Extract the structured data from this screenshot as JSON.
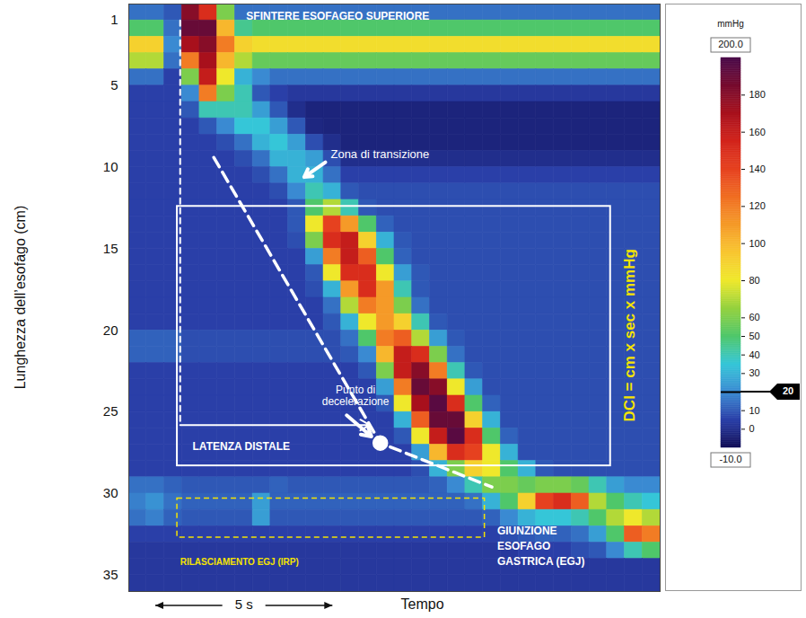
{
  "chart_data": {
    "type": "heatmap",
    "x_label": "Tempo",
    "y_label": "Lunghezza dell’esofago (cm)",
    "xlim": [
      0,
      15
    ],
    "ylim": [
      36,
      0
    ],
    "yticks": [
      1,
      5,
      10,
      15,
      20,
      25,
      30,
      35
    ],
    "tick_labels": "y",
    "x_bins": [
      0,
      0.5,
      1,
      1.5,
      2,
      2.5,
      3,
      3.5,
      4,
      4.5,
      5,
      5.5,
      6,
      6.5,
      7,
      7.5,
      8,
      8.5,
      9,
      9.5,
      10,
      10.5,
      11,
      11.5,
      12,
      12.5,
      13,
      13.5,
      14,
      14.5,
      15
    ],
    "y_bins": [
      0,
      1,
      2,
      3,
      4,
      5,
      6,
      7,
      8,
      9,
      10,
      11,
      12,
      13,
      14,
      15,
      16,
      17,
      18,
      19,
      20,
      21,
      22,
      23,
      24,
      25,
      26,
      27,
      28,
      29,
      30,
      31,
      32,
      33,
      34,
      35,
      36
    ],
    "values": [
      [
        15,
        15,
        10,
        180,
        150,
        60,
        15,
        15,
        15,
        15,
        15,
        15,
        15,
        15,
        15,
        15,
        15,
        15,
        15,
        15,
        15,
        15,
        15,
        15,
        15,
        15,
        15,
        15,
        15,
        15
      ],
      [
        50,
        50,
        15,
        190,
        190,
        100,
        45,
        50,
        50,
        50,
        50,
        50,
        50,
        50,
        50,
        50,
        50,
        50,
        50,
        50,
        50,
        50,
        50,
        50,
        50,
        50,
        50,
        50,
        50,
        50
      ],
      [
        90,
        90,
        20,
        170,
        180,
        120,
        90,
        85,
        85,
        85,
        85,
        85,
        85,
        85,
        85,
        85,
        85,
        85,
        85,
        85,
        85,
        85,
        85,
        85,
        85,
        85,
        85,
        85,
        85,
        85
      ],
      [
        70,
        70,
        15,
        120,
        170,
        100,
        70,
        55,
        55,
        55,
        55,
        55,
        55,
        55,
        55,
        55,
        55,
        55,
        55,
        55,
        55,
        55,
        55,
        55,
        55,
        55,
        55,
        55,
        55,
        55
      ],
      [
        15,
        15,
        5,
        60,
        160,
        80,
        30,
        20,
        15,
        15,
        15,
        15,
        15,
        15,
        15,
        15,
        15,
        15,
        15,
        15,
        15,
        15,
        15,
        15,
        15,
        15,
        15,
        15,
        15,
        15
      ],
      [
        5,
        5,
        5,
        20,
        120,
        60,
        40,
        10,
        5,
        3,
        3,
        3,
        3,
        3,
        3,
        3,
        3,
        3,
        3,
        3,
        3,
        3,
        3,
        3,
        3,
        3,
        3,
        3,
        3,
        3
      ],
      [
        5,
        5,
        5,
        10,
        40,
        40,
        40,
        25,
        10,
        0,
        -3,
        -3,
        -3,
        -3,
        -3,
        -3,
        -3,
        -3,
        -3,
        -3,
        -3,
        -3,
        -3,
        -3,
        -3,
        -3,
        -3,
        -3,
        -3,
        -3
      ],
      [
        5,
        5,
        5,
        5,
        10,
        20,
        35,
        35,
        25,
        10,
        -2,
        -3,
        -3,
        -3,
        -3,
        -3,
        -3,
        -3,
        -3,
        -3,
        -3,
        -3,
        -3,
        -3,
        -3,
        -3,
        -3,
        -3,
        -3,
        -3
      ],
      [
        5,
        5,
        5,
        5,
        5,
        8,
        15,
        30,
        35,
        25,
        8,
        0,
        -3,
        -3,
        -3,
        -3,
        -3,
        -3,
        -3,
        -3,
        -3,
        -3,
        -3,
        -3,
        -3,
        -3,
        -3,
        -3,
        -3,
        -3
      ],
      [
        5,
        5,
        5,
        5,
        5,
        5,
        8,
        15,
        30,
        30,
        25,
        8,
        0,
        0,
        0,
        0,
        0,
        0,
        0,
        0,
        0,
        0,
        0,
        0,
        0,
        0,
        0,
        0,
        0,
        0
      ],
      [
        5,
        5,
        5,
        5,
        5,
        5,
        5,
        8,
        15,
        30,
        30,
        15,
        5,
        5,
        5,
        5,
        5,
        5,
        5,
        5,
        5,
        5,
        5,
        5,
        5,
        5,
        5,
        5,
        5,
        5
      ],
      [
        5,
        5,
        5,
        5,
        5,
        5,
        5,
        5,
        8,
        20,
        40,
        30,
        10,
        8,
        8,
        8,
        8,
        8,
        8,
        8,
        8,
        8,
        8,
        8,
        8,
        8,
        8,
        8,
        8,
        8
      ],
      [
        5,
        5,
        5,
        5,
        5,
        5,
        5,
        5,
        5,
        10,
        50,
        70,
        40,
        10,
        8,
        8,
        8,
        8,
        8,
        8,
        8,
        8,
        8,
        8,
        8,
        8,
        8,
        8,
        8,
        8
      ],
      [
        5,
        5,
        5,
        5,
        5,
        5,
        5,
        5,
        5,
        10,
        80,
        140,
        110,
        50,
        12,
        8,
        8,
        8,
        8,
        8,
        8,
        8,
        8,
        8,
        8,
        8,
        8,
        8,
        8,
        8
      ],
      [
        5,
        5,
        5,
        5,
        5,
        5,
        5,
        5,
        5,
        8,
        60,
        150,
        160,
        90,
        30,
        10,
        8,
        8,
        8,
        8,
        8,
        8,
        8,
        8,
        8,
        8,
        8,
        8,
        8,
        8
      ],
      [
        5,
        5,
        5,
        5,
        5,
        5,
        5,
        5,
        5,
        5,
        25,
        120,
        160,
        130,
        50,
        12,
        8,
        8,
        8,
        8,
        8,
        8,
        8,
        8,
        8,
        8,
        8,
        8,
        8,
        8
      ],
      [
        5,
        5,
        5,
        5,
        5,
        5,
        5,
        5,
        5,
        5,
        10,
        80,
        150,
        150,
        80,
        25,
        10,
        8,
        8,
        8,
        8,
        8,
        8,
        8,
        8,
        8,
        8,
        8,
        8,
        8
      ],
      [
        5,
        5,
        5,
        5,
        5,
        5,
        5,
        5,
        5,
        5,
        8,
        30,
        110,
        150,
        110,
        40,
        10,
        8,
        8,
        8,
        8,
        8,
        8,
        8,
        8,
        8,
        8,
        8,
        8,
        8
      ],
      [
        5,
        5,
        5,
        5,
        5,
        5,
        5,
        5,
        5,
        5,
        5,
        15,
        70,
        120,
        110,
        60,
        15,
        8,
        8,
        8,
        8,
        8,
        8,
        8,
        8,
        8,
        8,
        8,
        8,
        8
      ],
      [
        5,
        5,
        5,
        5,
        5,
        5,
        5,
        5,
        5,
        5,
        5,
        10,
        30,
        80,
        110,
        90,
        40,
        10,
        8,
        8,
        8,
        8,
        8,
        8,
        8,
        8,
        8,
        8,
        8,
        8
      ],
      [
        12,
        12,
        12,
        8,
        8,
        8,
        8,
        8,
        8,
        8,
        8,
        8,
        15,
        50,
        120,
        130,
        70,
        25,
        10,
        8,
        8,
        8,
        8,
        8,
        8,
        8,
        8,
        8,
        8,
        8
      ],
      [
        12,
        12,
        12,
        8,
        8,
        8,
        8,
        8,
        8,
        8,
        8,
        8,
        10,
        20,
        100,
        160,
        150,
        60,
        15,
        8,
        8,
        8,
        8,
        8,
        8,
        8,
        8,
        8,
        8,
        8
      ],
      [
        5,
        5,
        5,
        5,
        5,
        5,
        5,
        5,
        5,
        5,
        5,
        5,
        5,
        10,
        60,
        160,
        180,
        120,
        40,
        10,
        8,
        8,
        8,
        8,
        8,
        8,
        8,
        8,
        8,
        8
      ],
      [
        5,
        5,
        5,
        5,
        5,
        5,
        5,
        5,
        5,
        5,
        5,
        5,
        5,
        5,
        25,
        120,
        190,
        180,
        80,
        25,
        8,
        8,
        8,
        8,
        8,
        8,
        8,
        8,
        8,
        8
      ],
      [
        5,
        5,
        5,
        5,
        5,
        5,
        5,
        5,
        5,
        5,
        5,
        5,
        5,
        5,
        10,
        80,
        170,
        195,
        150,
        50,
        12,
        8,
        8,
        8,
        8,
        8,
        8,
        8,
        8,
        8
      ],
      [
        5,
        5,
        5,
        5,
        5,
        5,
        5,
        5,
        5,
        5,
        5,
        5,
        5,
        5,
        5,
        30,
        130,
        190,
        190,
        90,
        30,
        8,
        8,
        8,
        8,
        8,
        8,
        8,
        8,
        8
      ],
      [
        5,
        5,
        5,
        5,
        5,
        5,
        5,
        5,
        5,
        5,
        5,
        5,
        5,
        5,
        5,
        10,
        80,
        160,
        195,
        150,
        50,
        12,
        8,
        8,
        8,
        8,
        8,
        8,
        8,
        8
      ],
      [
        5,
        5,
        5,
        5,
        5,
        5,
        5,
        5,
        5,
        5,
        5,
        5,
        5,
        5,
        5,
        5,
        25,
        100,
        150,
        140,
        80,
        30,
        8,
        8,
        8,
        8,
        8,
        8,
        8,
        8
      ],
      [
        5,
        5,
        5,
        5,
        5,
        5,
        5,
        5,
        5,
        5,
        5,
        5,
        5,
        5,
        5,
        5,
        8,
        30,
        60,
        90,
        80,
        50,
        30,
        10,
        8,
        8,
        8,
        8,
        8,
        8
      ],
      [
        15,
        15,
        12,
        10,
        10,
        10,
        10,
        10,
        12,
        10,
        10,
        10,
        10,
        10,
        10,
        10,
        10,
        12,
        20,
        40,
        60,
        60,
        55,
        60,
        60,
        55,
        40,
        25,
        20,
        20
      ],
      [
        18,
        22,
        15,
        12,
        12,
        12,
        12,
        25,
        12,
        12,
        12,
        12,
        12,
        12,
        12,
        12,
        12,
        12,
        12,
        15,
        30,
        50,
        90,
        140,
        150,
        130,
        70,
        50,
        40,
        35
      ],
      [
        15,
        18,
        12,
        10,
        10,
        10,
        10,
        25,
        10,
        10,
        10,
        10,
        10,
        10,
        10,
        10,
        10,
        10,
        10,
        10,
        12,
        20,
        30,
        35,
        35,
        40,
        50,
        70,
        80,
        70
      ],
      [
        5,
        5,
        5,
        5,
        5,
        5,
        5,
        5,
        5,
        5,
        5,
        5,
        5,
        5,
        5,
        5,
        5,
        5,
        5,
        5,
        5,
        8,
        10,
        12,
        12,
        15,
        25,
        50,
        130,
        120
      ],
      [
        3,
        3,
        3,
        3,
        3,
        3,
        3,
        3,
        3,
        3,
        3,
        3,
        3,
        3,
        3,
        3,
        3,
        3,
        3,
        3,
        3,
        3,
        5,
        5,
        5,
        8,
        10,
        20,
        40,
        50
      ],
      [
        3,
        3,
        3,
        3,
        3,
        3,
        3,
        3,
        3,
        3,
        3,
        3,
        3,
        3,
        3,
        3,
        3,
        3,
        3,
        3,
        3,
        3,
        3,
        3,
        3,
        3,
        3,
        3,
        3,
        3
      ],
      [
        3,
        3,
        3,
        3,
        3,
        3,
        3,
        3,
        3,
        3,
        3,
        3,
        3,
        3,
        3,
        3,
        3,
        3,
        3,
        3,
        3,
        3,
        3,
        3,
        3,
        3,
        3,
        3,
        3,
        3
      ]
    ],
    "colorbar": {
      "label": "mmHg",
      "range": [
        -10,
        200
      ],
      "ticks": [
        {
          "value": -10,
          "label": "-10.0"
        },
        0,
        10,
        30,
        40,
        50,
        60,
        80,
        100,
        120,
        140,
        160,
        180,
        {
          "value": 200,
          "label": "200.0"
        }
      ],
      "reference_value": 20
    },
    "time_scale": {
      "value": 5,
      "label": "5 s"
    },
    "annotations": [
      "SFINTERE ESOFAGEO SUPERIORE",
      "Zona di transizione",
      "Punto di decelerazione",
      "LATENZA DISTALE",
      "DCI = cm x sec x mmHg",
      "RILASCIAMENTO EGJ (IRP)",
      "GIUNZIONE ESOFAGO GASTRICA (EGJ)"
    ]
  }
}
